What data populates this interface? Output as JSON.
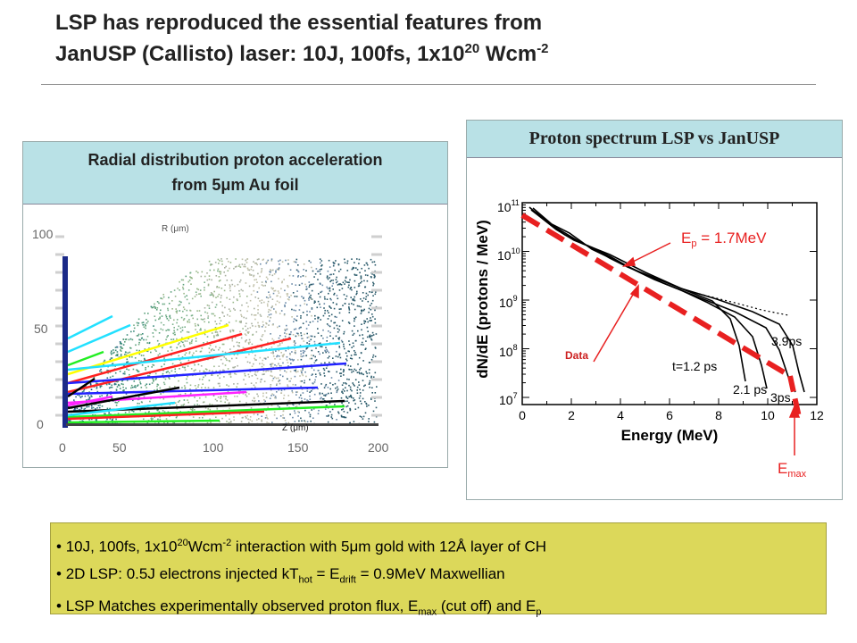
{
  "slide": {
    "title_line1": "LSP has reproduced the essential features from",
    "title_line2_main": "JanUSP (Callisto) laser: 10J, 100fs, 1x10",
    "title_line2_exp": "20",
    "title_line2_unit": " Wcm",
    "title_line2_unit_exp": "-2"
  },
  "left_panel": {
    "header_line1": "Radial distribution proton acceleration",
    "header_line2": "from 5μm Au foil",
    "axis_label_r": "R (μm)",
    "axis_label_z": "Z (μm)",
    "y_ticks": [
      "100",
      "50",
      "0"
    ],
    "x_ticks": [
      "0",
      "50",
      "100",
      "150",
      "200"
    ],
    "colors": {
      "cyan": "#22e0ff",
      "yellow": "#ffff00",
      "red": "#ff2020",
      "green": "#22ee22",
      "blue": "#2222ff",
      "magenta": "#ff22ff",
      "black": "#000000"
    }
  },
  "right_panel": {
    "header": "Proton spectrum LSP vs JanUSP",
    "y_axis_label": "dN/dE (protons / MeV)",
    "x_axis_label": "Energy (MeV)",
    "y_ticks": [
      {
        "base": "10",
        "exp": "11"
      },
      {
        "base": "10",
        "exp": "10"
      },
      {
        "base": "10",
        "exp": "9"
      },
      {
        "base": "10",
        "exp": "8"
      },
      {
        "base": "10",
        "exp": "7"
      }
    ],
    "x_ticks": [
      "0",
      "2",
      "4",
      "6",
      "8",
      "10",
      "12"
    ],
    "ep_label_main": "E",
    "ep_label_sub": "p",
    "ep_label_value": " = 1.7MeV",
    "data_label": "Data",
    "emax_main": "E",
    "emax_sub": "max",
    "curve_labels": [
      "3.9ps",
      "t=1.2 ps",
      "2.1 ps",
      "3ps"
    ],
    "colors": {
      "fit": "#e82020",
      "arrow": "#e82020",
      "data_label": "#cc2020"
    }
  },
  "bullets": {
    "b1_a": "10J, 100fs, 1x10",
    "b1_exp": "20",
    "b1_b": "Wcm",
    "b1_exp2": "-2",
    "b1_c": " interaction with 5",
    "b1_mu": "μ",
    "b1_d": "m gold with 12Å layer of CH",
    "b2_a": "2D LSP: 0.5J electrons injected kT",
    "b2_sub1": "hot",
    "b2_b": " = E",
    "b2_sub2": "drift",
    "b2_c": " = 0.9MeV Maxwellian",
    "b3_a": "LSP Matches  experimentally observed proton flux, E",
    "b3_sub1": "max",
    "b3_b": " (cut off) and E",
    "b3_sub2": "p"
  }
}
